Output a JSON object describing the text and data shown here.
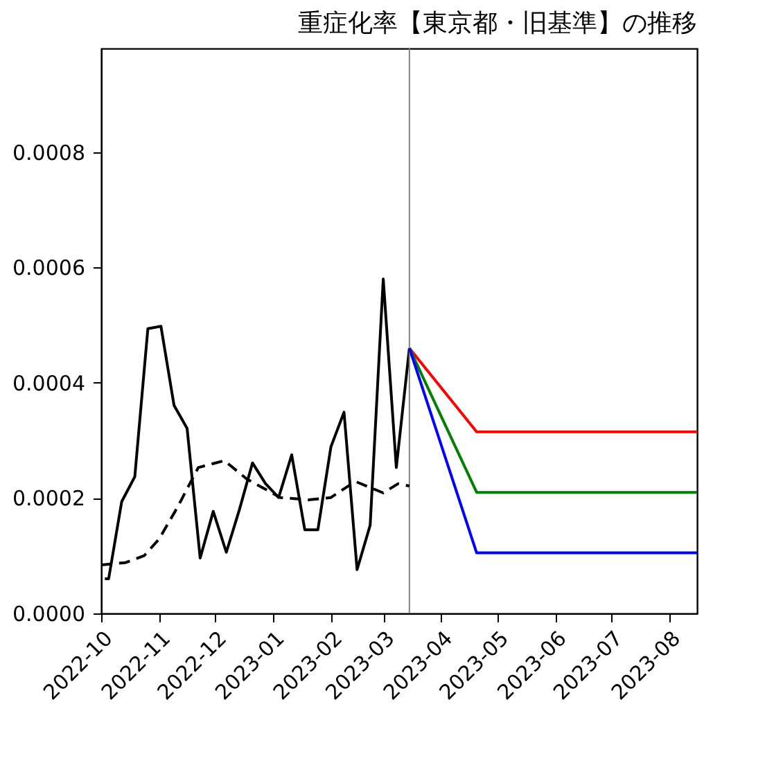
{
  "chart_data": {
    "type": "line",
    "title": "重症化率【東京都・旧基準】の推移",
    "xlim": [
      "2022-10-01",
      "2023-08-16"
    ],
    "xticks": [
      "2022-10",
      "2022-11",
      "2022-12",
      "2023-01",
      "2023-02",
      "2023-03",
      "2023-04",
      "2023-05",
      "2023-06",
      "2023-07",
      "2023-08"
    ],
    "ylim": [
      0,
      0.00098
    ],
    "yticks": [
      {
        "value": 0,
        "label": "0.0000"
      },
      {
        "value": 0.0002,
        "label": "0.0002"
      },
      {
        "value": 0.0004,
        "label": "0.0004"
      },
      {
        "value": 0.0006,
        "label": "0.0006"
      },
      {
        "value": 0.0008,
        "label": "0.0008"
      }
    ],
    "ref_lines": [
      {
        "axis": "x",
        "value": "2023-03-15",
        "color": "#808080"
      }
    ],
    "series": [
      {
        "color": "#000000",
        "line_style": "solid",
        "x": [
          "2022-10-03",
          "2022-10-05",
          "2022-10-12",
          "2022-10-19",
          "2022-10-26",
          "2022-11-02",
          "2022-11-09",
          "2022-11-16",
          "2022-11-23",
          "2022-11-30",
          "2022-12-07",
          "2022-12-14",
          "2022-12-21",
          "2022-12-28",
          "2023-01-04",
          "2023-01-11",
          "2023-01-18",
          "2023-01-25",
          "2023-02-01",
          "2023-02-08",
          "2023-02-15",
          "2023-02-22",
          "2023-03-01",
          "2023-03-08",
          "2023-03-15"
        ],
        "values": [
          6e-05,
          6e-05,
          0.000194,
          0.000237,
          0.000494,
          0.000498,
          0.000361,
          0.000321,
          9.6e-05,
          0.000177,
          0.000106,
          0.00018,
          0.000261,
          0.000225,
          0.000201,
          0.000275,
          0.000145,
          0.000145,
          0.000289,
          0.000349,
          7.6e-05,
          0.000153,
          0.00058,
          0.000253,
          0.00046
        ]
      },
      {
        "color": "#000000",
        "line_style": "dashed",
        "x": [
          "2022-10-01",
          "2022-10-14",
          "2022-10-24",
          "2022-11-01",
          "2022-11-11",
          "2022-11-22",
          "2022-12-06",
          "2022-12-18",
          "2023-01-05",
          "2023-01-20",
          "2023-02-01",
          "2023-02-14",
          "2023-03-01",
          "2023-03-09",
          "2023-03-15"
        ],
        "values": [
          8.4e-05,
          8.8e-05,
          0.0001,
          0.000129,
          0.000185,
          0.000253,
          0.000265,
          0.000233,
          0.000201,
          0.000197,
          0.000201,
          0.000229,
          0.000209,
          0.000225,
          0.000221
        ]
      },
      {
        "color": "#ff0000",
        "line_style": "solid",
        "x": [
          "2023-03-15",
          "2023-04-20",
          "2023-08-16"
        ],
        "values": [
          0.00046,
          0.000315,
          0.000315
        ]
      },
      {
        "color": "#008000",
        "line_style": "solid",
        "x": [
          "2023-03-15",
          "2023-04-20",
          "2023-08-16"
        ],
        "values": [
          0.00046,
          0.00021,
          0.00021
        ]
      },
      {
        "color": "#0000ff",
        "line_style": "solid",
        "x": [
          "2023-03-15",
          "2023-04-20",
          "2023-08-16"
        ],
        "values": [
          0.00046,
          0.000105,
          0.000105
        ]
      }
    ]
  }
}
